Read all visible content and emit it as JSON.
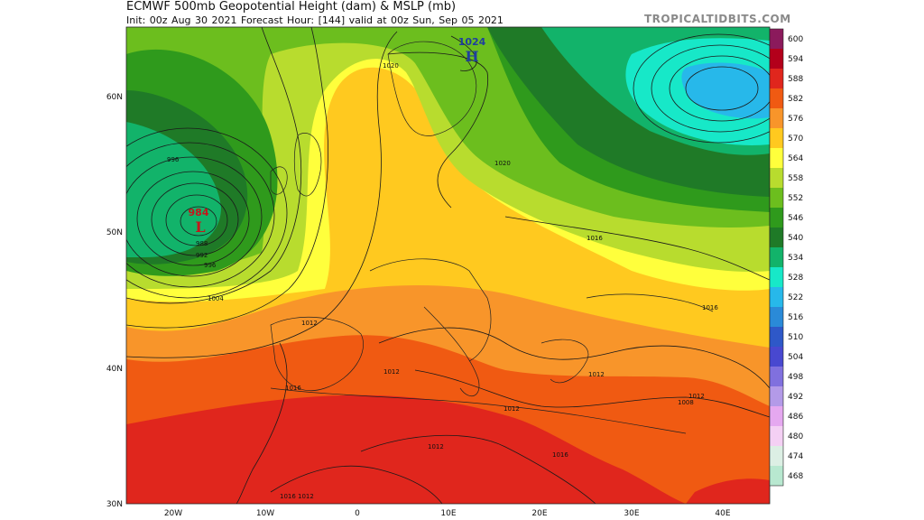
{
  "header": {
    "title": "ECMWF 500mb Geopotential Height (dam) & MSLP (mb)",
    "subtitle": "Init: 00z Aug 30 2021   Forecast Hour: [144]   valid at 00z Sun, Sep 05 2021",
    "brand": "TROPICALTIDBITS.COM"
  },
  "axes": {
    "lat_labels": [
      "60N",
      "50N",
      "40N",
      "30N"
    ],
    "lon_labels": [
      "20W",
      "10W",
      "0",
      "10E",
      "20E",
      "30E",
      "40E"
    ]
  },
  "colorbar": {
    "labels": [
      "600",
      "594",
      "588",
      "582",
      "576",
      "570",
      "564",
      "558",
      "552",
      "546",
      "540",
      "534",
      "528",
      "522",
      "516",
      "510",
      "504",
      "498",
      "492",
      "486",
      "480",
      "474",
      "468"
    ],
    "colors": [
      "#8b1a5c",
      "#b3001b",
      "#e0261d",
      "#f05a12",
      "#f8952a",
      "#ffc91f",
      "#ffff3c",
      "#b8dc2e",
      "#6cbe1e",
      "#2f9a1c",
      "#1f7a27",
      "#12b36a",
      "#17e8c8",
      "#27b8ea",
      "#2a8ad8",
      "#2e58c8",
      "#4848d0",
      "#8070de",
      "#b39ae8",
      "#e5a8f0",
      "#f4d0f4",
      "#dcefe4",
      "#b8e8d0"
    ]
  },
  "map": {
    "low_center": {
      "symbol": "L",
      "pressure": "984"
    },
    "high_center": {
      "symbol": "H",
      "pressure": "1024"
    },
    "isobar_labels": [
      "996",
      "988",
      "992",
      "996",
      "1004",
      "1020",
      "1020",
      "1016",
      "1012",
      "1016",
      "1012",
      "1016",
      "1012",
      "1012",
      "1008",
      "1012",
      "1012",
      "1016",
      "1012",
      "1016"
    ]
  }
}
